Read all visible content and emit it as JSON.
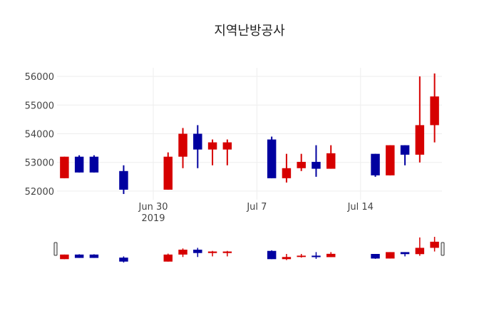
{
  "chart_data": {
    "type": "candlestick",
    "title": "지역난방공사",
    "increasing_color": "#d60000",
    "decreasing_color": "#0000a0",
    "ylim": [
      51700,
      56300
    ],
    "y_ticks": [
      "52000",
      "53000",
      "54000",
      "55000",
      "56000"
    ],
    "y_tick_values": [
      52000,
      53000,
      54000,
      55000,
      56000
    ],
    "x_ticks": [
      {
        "date": "2019-06-30",
        "label": "Jun 30",
        "sub": "2019"
      },
      {
        "date": "2019-07-07",
        "label": "Jul 7",
        "sub": ""
      },
      {
        "date": "2019-07-14",
        "label": "Jul 14",
        "sub": ""
      }
    ],
    "xlim": [
      "2019-06-23T12:00",
      "2019-07-19T12:00"
    ],
    "grid": true,
    "rangeslider": true,
    "candles": [
      {
        "date": "2019-06-24",
        "open": 52450,
        "high": 53200,
        "low": 52450,
        "close": 53200
      },
      {
        "date": "2019-06-25",
        "open": 53200,
        "high": 53250,
        "low": 52650,
        "close": 52650
      },
      {
        "date": "2019-06-26",
        "open": 53200,
        "high": 53250,
        "low": 52650,
        "close": 52650
      },
      {
        "date": "2019-06-28",
        "open": 52700,
        "high": 52900,
        "low": 51900,
        "close": 52050
      },
      {
        "date": "2019-07-01",
        "open": 52050,
        "high": 53350,
        "low": 52050,
        "close": 53200
      },
      {
        "date": "2019-07-02",
        "open": 53200,
        "high": 54200,
        "low": 52800,
        "close": 54000
      },
      {
        "date": "2019-07-03",
        "open": 54000,
        "high": 54300,
        "low": 52800,
        "close": 53450
      },
      {
        "date": "2019-07-04",
        "open": 53450,
        "high": 53800,
        "low": 52900,
        "close": 53700
      },
      {
        "date": "2019-07-05",
        "open": 53450,
        "high": 53800,
        "low": 52900,
        "close": 53700
      },
      {
        "date": "2019-07-08",
        "open": 53800,
        "high": 53900,
        "low": 52450,
        "close": 52450
      },
      {
        "date": "2019-07-09",
        "open": 52450,
        "high": 53300,
        "low": 52300,
        "close": 52800
      },
      {
        "date": "2019-07-10",
        "open": 52800,
        "high": 53300,
        "low": 52700,
        "close": 53020
      },
      {
        "date": "2019-07-11",
        "open": 53020,
        "high": 53600,
        "low": 52500,
        "close": 52780
      },
      {
        "date": "2019-07-12",
        "open": 52780,
        "high": 53600,
        "low": 52780,
        "close": 53320
      },
      {
        "date": "2019-07-15",
        "open": 53300,
        "high": 53300,
        "low": 52500,
        "close": 52550
      },
      {
        "date": "2019-07-16",
        "open": 52550,
        "high": 53600,
        "low": 52550,
        "close": 53600
      },
      {
        "date": "2019-07-17",
        "open": 53600,
        "high": 53600,
        "low": 52900,
        "close": 53270
      },
      {
        "date": "2019-07-18",
        "open": 53270,
        "high": 56000,
        "low": 53000,
        "close": 54300
      },
      {
        "date": "2019-07-19",
        "open": 54300,
        "high": 56100,
        "low": 53700,
        "close": 55300
      }
    ]
  }
}
